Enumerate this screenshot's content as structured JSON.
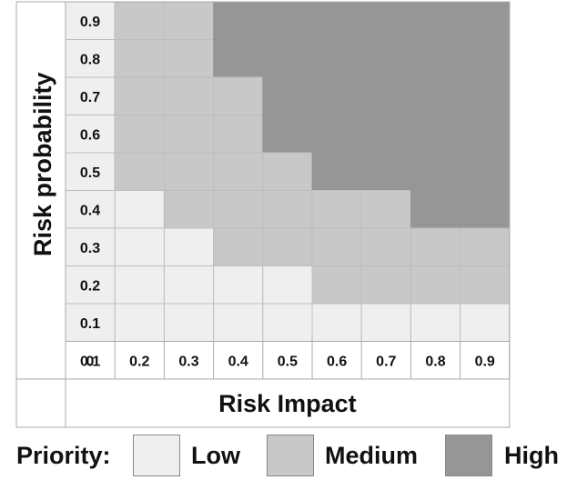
{
  "chart_data": {
    "type": "heatmap",
    "xlabel": "Risk Impact",
    "ylabel": "Risk probability",
    "x": [
      "0",
      "0.1",
      "0.2",
      "0.3",
      "0.4",
      "0.5",
      "0.6",
      "0.7",
      "0.8",
      "0.9"
    ],
    "y": [
      "0.1",
      "0.2",
      "0.3",
      "0.4",
      "0.5",
      "0.6",
      "0.7",
      "0.8",
      "0.9"
    ],
    "levels": [
      "Low",
      "Medium",
      "High"
    ],
    "cells_comment_free": true,
    "matrix": [
      [
        0,
        0,
        0,
        0,
        0,
        0,
        0,
        0,
        0
      ],
      [
        0,
        0,
        0,
        0,
        0,
        1,
        1,
        1,
        1
      ],
      [
        0,
        0,
        0,
        1,
        1,
        1,
        1,
        1,
        1
      ],
      [
        0,
        0,
        1,
        1,
        1,
        1,
        1,
        2,
        2
      ],
      [
        0,
        1,
        1,
        1,
        1,
        2,
        2,
        2,
        2
      ],
      [
        0,
        1,
        1,
        1,
        2,
        2,
        2,
        2,
        2
      ],
      [
        0,
        1,
        1,
        1,
        2,
        2,
        2,
        2,
        2
      ],
      [
        0,
        1,
        1,
        2,
        2,
        2,
        2,
        2,
        2
      ],
      [
        0,
        1,
        1,
        2,
        2,
        2,
        2,
        2,
        2
      ]
    ]
  },
  "legend": {
    "title": "Priority:",
    "items": [
      {
        "label": "Low",
        "color": "#efefef"
      },
      {
        "label": "Medium",
        "color": "#c8c8c8"
      },
      {
        "label": "High",
        "color": "#969696"
      }
    ]
  }
}
